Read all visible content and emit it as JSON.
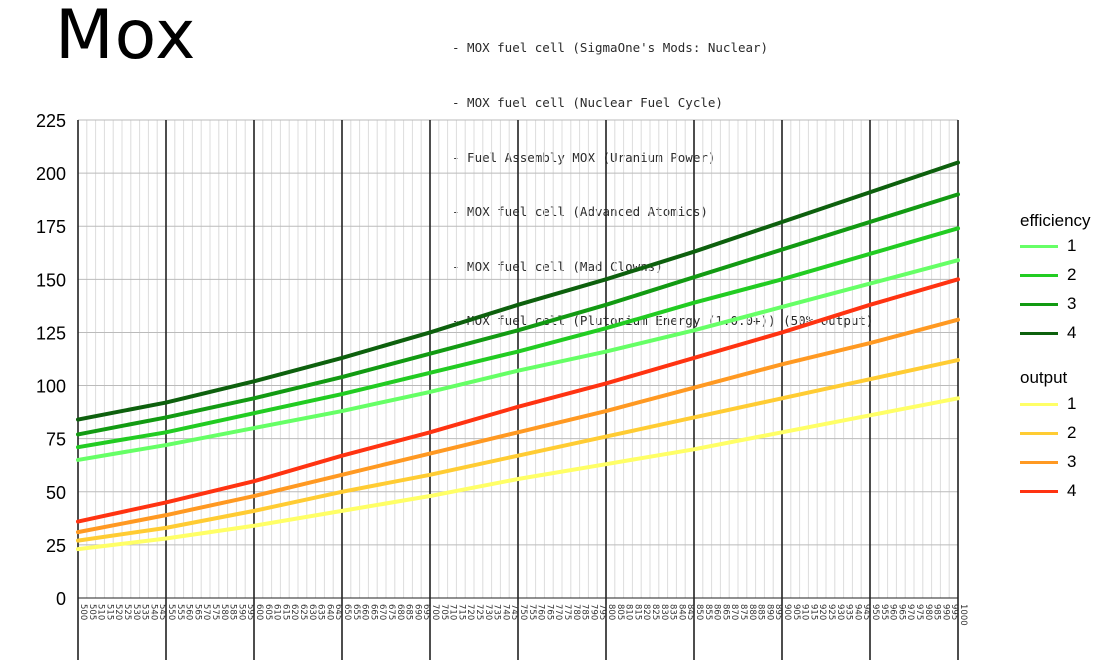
{
  "title": "Mox",
  "sources": [
    "- MOX fuel cell (SigmaOne's Mods: Nuclear)",
    "- MOX fuel cell (Nuclear Fuel Cycle)",
    "- Fuel Assembly MOX (Uranium Power)",
    "- MOX fuel cell (Advanced Atomics)",
    "- MOX fuel cell (Mad Clowns)",
    "- MOX fuel cell (Plutonium Energy (1.0.0+)) (50% output)"
  ],
  "legend": {
    "efficiency_title": "efficiency",
    "output_title": "output",
    "efficiency_items": [
      "1",
      "2",
      "3",
      "4"
    ],
    "output_items": [
      "1",
      "2",
      "3",
      "4"
    ]
  },
  "chart_data": {
    "type": "line",
    "x": [
      500,
      1000
    ],
    "xlim": [
      500,
      1000
    ],
    "ylim": [
      0,
      225
    ],
    "yticks": [
      0,
      25,
      50,
      75,
      100,
      125,
      150,
      175,
      200,
      225
    ],
    "xtick_step": 5,
    "xmajor_step": 50,
    "grid": true,
    "legend_position": "right",
    "series": [
      {
        "group": "efficiency",
        "name": "1",
        "color": "#66ff66",
        "values": [
          [
            500,
            65
          ],
          [
            550,
            72
          ],
          [
            600,
            80
          ],
          [
            650,
            88
          ],
          [
            700,
            97
          ],
          [
            750,
            107
          ],
          [
            800,
            116
          ],
          [
            850,
            126
          ],
          [
            900,
            137
          ],
          [
            950,
            148
          ],
          [
            1000,
            159
          ]
        ]
      },
      {
        "group": "efficiency",
        "name": "2",
        "color": "#22cc22",
        "values": [
          [
            500,
            71
          ],
          [
            550,
            78
          ],
          [
            600,
            87
          ],
          [
            650,
            96
          ],
          [
            700,
            106
          ],
          [
            750,
            116
          ],
          [
            800,
            127
          ],
          [
            850,
            139
          ],
          [
            900,
            150
          ],
          [
            950,
            162
          ],
          [
            1000,
            174
          ]
        ]
      },
      {
        "group": "efficiency",
        "name": "3",
        "color": "#129a12",
        "values": [
          [
            500,
            77
          ],
          [
            550,
            85
          ],
          [
            600,
            94
          ],
          [
            650,
            104
          ],
          [
            700,
            115
          ],
          [
            750,
            126
          ],
          [
            800,
            138
          ],
          [
            850,
            151
          ],
          [
            900,
            164
          ],
          [
            950,
            177
          ],
          [
            1000,
            190
          ]
        ]
      },
      {
        "group": "efficiency",
        "name": "4",
        "color": "#0d600d",
        "values": [
          [
            500,
            84
          ],
          [
            550,
            92
          ],
          [
            600,
            102
          ],
          [
            650,
            113
          ],
          [
            700,
            125
          ],
          [
            750,
            138
          ],
          [
            800,
            150
          ],
          [
            850,
            163
          ],
          [
            900,
            177
          ],
          [
            950,
            191
          ],
          [
            1000,
            205
          ]
        ]
      },
      {
        "group": "output",
        "name": "1",
        "color": "#ffff66",
        "values": [
          [
            500,
            23
          ],
          [
            550,
            28
          ],
          [
            600,
            34
          ],
          [
            650,
            41
          ],
          [
            700,
            48
          ],
          [
            750,
            56
          ],
          [
            800,
            63
          ],
          [
            850,
            70
          ],
          [
            900,
            78
          ],
          [
            950,
            86
          ],
          [
            1000,
            94
          ]
        ]
      },
      {
        "group": "output",
        "name": "2",
        "color": "#ffcc33",
        "values": [
          [
            500,
            27
          ],
          [
            550,
            33
          ],
          [
            600,
            41
          ],
          [
            650,
            50
          ],
          [
            700,
            58
          ],
          [
            750,
            67
          ],
          [
            800,
            76
          ],
          [
            850,
            85
          ],
          [
            900,
            94
          ],
          [
            950,
            103
          ],
          [
            1000,
            112
          ]
        ]
      },
      {
        "group": "output",
        "name": "3",
        "color": "#ff9922",
        "values": [
          [
            500,
            31
          ],
          [
            550,
            39
          ],
          [
            600,
            48
          ],
          [
            650,
            58
          ],
          [
            700,
            68
          ],
          [
            750,
            78
          ],
          [
            800,
            88
          ],
          [
            850,
            99
          ],
          [
            900,
            110
          ],
          [
            950,
            120
          ],
          [
            1000,
            131
          ]
        ]
      },
      {
        "group": "output",
        "name": "4",
        "color": "#ff3311",
        "values": [
          [
            500,
            36
          ],
          [
            550,
            45
          ],
          [
            600,
            55
          ],
          [
            650,
            67
          ],
          [
            700,
            78
          ],
          [
            750,
            90
          ],
          [
            800,
            101
          ],
          [
            850,
            113
          ],
          [
            900,
            125
          ],
          [
            950,
            138
          ],
          [
            1000,
            150
          ]
        ]
      }
    ]
  }
}
